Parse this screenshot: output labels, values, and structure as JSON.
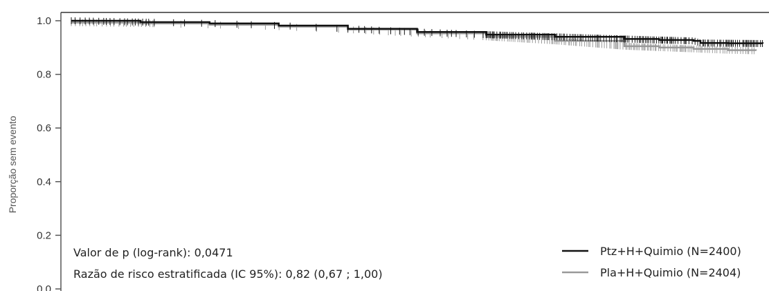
{
  "chart_data": {
    "type": "line",
    "title": "",
    "ylabel": "Proporção sem evento",
    "xlabel": "",
    "ylim": [
      0.0,
      1.0
    ],
    "xlim": [
      0,
      100
    ],
    "yticks": [
      "0.0",
      "0.2",
      "0.4",
      "0.6",
      "0.8",
      "1.0"
    ],
    "ytick_values": [
      0.0,
      0.2,
      0.4,
      0.6,
      0.8,
      1.0
    ],
    "grid": false,
    "legend_position": "bottom-right",
    "series": [
      {
        "name": "Ptz+H+Quimio (N=2400)",
        "color": "#111111",
        "points": [
          [
            0,
            1.0
          ],
          [
            10,
            0.995
          ],
          [
            20,
            0.99
          ],
          [
            30,
            0.982
          ],
          [
            40,
            0.97
          ],
          [
            50,
            0.958
          ],
          [
            60,
            0.948
          ],
          [
            70,
            0.94
          ],
          [
            80,
            0.932
          ],
          [
            85,
            0.928
          ],
          [
            90,
            0.925
          ],
          [
            91,
            0.917
          ],
          [
            95,
            0.916
          ],
          [
            100,
            0.915
          ]
        ]
      },
      {
        "name": "Pla+H+Quimio (N=2404)",
        "color": "#999999",
        "points": [
          [
            0,
            0.993
          ],
          [
            10,
            0.99
          ],
          [
            20,
            0.985
          ],
          [
            30,
            0.978
          ],
          [
            40,
            0.967
          ],
          [
            50,
            0.953
          ],
          [
            60,
            0.94
          ],
          [
            70,
            0.925
          ],
          [
            80,
            0.905
          ],
          [
            85,
            0.9
          ],
          [
            90,
            0.895
          ],
          [
            95,
            0.89
          ],
          [
            99,
            0.888
          ]
        ]
      }
    ],
    "annotations": [
      "Valor de p (log-rank): 0,0471",
      "Razão de risco estratificada (IC 95%): 0,82 (0,67 ; 1,00)"
    ]
  }
}
